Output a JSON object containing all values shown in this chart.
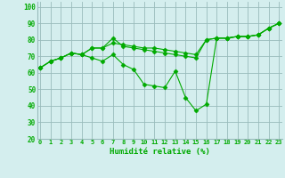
{
  "line1": [
    63,
    67,
    69,
    72,
    71,
    75,
    75,
    81,
    76,
    75,
    74,
    73,
    72,
    71,
    70,
    69,
    80,
    81,
    81,
    82,
    82,
    83,
    87,
    90
  ],
  "line2": [
    63,
    67,
    69,
    72,
    71,
    75,
    75,
    78,
    77,
    76,
    75,
    75,
    74,
    73,
    72,
    71,
    80,
    81,
    81,
    82,
    82,
    83,
    87,
    90
  ],
  "line3": [
    63,
    67,
    69,
    72,
    71,
    69,
    67,
    71,
    65,
    62,
    53,
    52,
    51,
    61,
    45,
    37,
    41,
    81,
    81,
    82,
    82,
    83,
    87,
    90
  ],
  "x": [
    0,
    1,
    2,
    3,
    4,
    5,
    6,
    7,
    8,
    9,
    10,
    11,
    12,
    13,
    14,
    15,
    16,
    17,
    18,
    19,
    20,
    21,
    22,
    23
  ],
  "line_color": "#00aa00",
  "bg_color": "#d4eeee",
  "grid_color": "#99bbbb",
  "xlabel": "Humidité relative (%)",
  "ylim": [
    20,
    103
  ],
  "xlim": [
    -0.3,
    23.3
  ],
  "yticks": [
    20,
    30,
    40,
    50,
    60,
    70,
    80,
    90,
    100
  ],
  "xticks": [
    0,
    1,
    2,
    3,
    4,
    5,
    6,
    7,
    8,
    9,
    10,
    11,
    12,
    13,
    14,
    15,
    16,
    17,
    18,
    19,
    20,
    21,
    22,
    23
  ]
}
